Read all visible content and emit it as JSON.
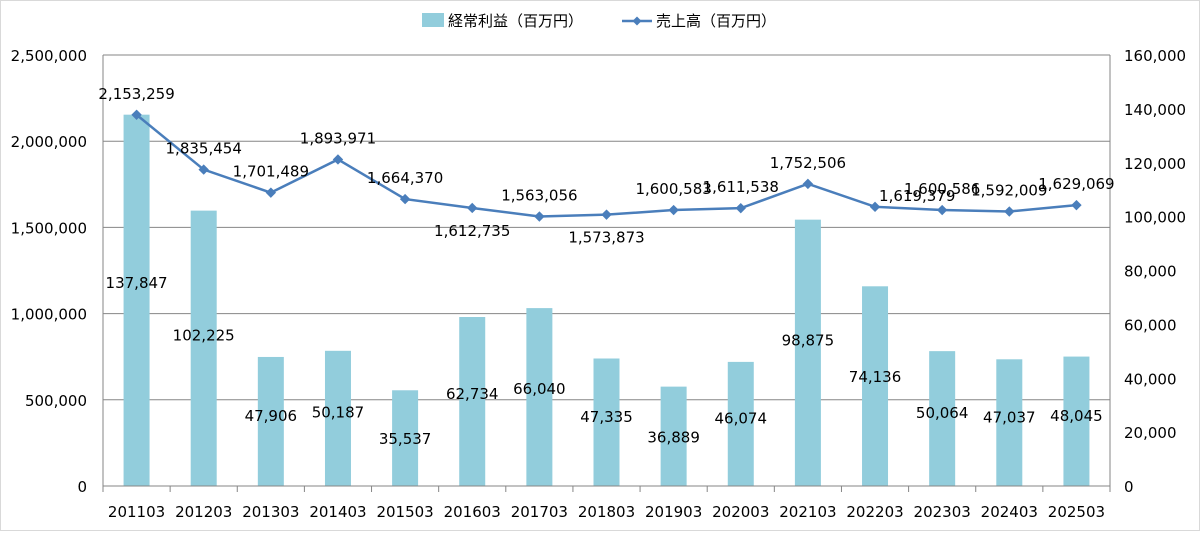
{
  "chart_data": {
    "type": "bar+line",
    "categories": [
      "201103",
      "201203",
      "201303",
      "201403",
      "201503",
      "201603",
      "201703",
      "201803",
      "201903",
      "202003",
      "202103",
      "202203",
      "202303",
      "202403",
      "202503"
    ],
    "series": [
      {
        "name": "経常利益（百万円）",
        "type": "bar",
        "axis": "right",
        "color": "#92cddc",
        "values": [
          137847,
          102225,
          47906,
          50187,
          35537,
          62734,
          66040,
          47335,
          36889,
          46074,
          98875,
          74136,
          50064,
          47037,
          48045
        ],
        "labels": [
          "137,847",
          "102,225",
          "47,906",
          "50,187",
          "35,537",
          "62,734",
          "66,040",
          "47,335",
          "36,889",
          "46,074",
          "98,875",
          "74,136",
          "50,064",
          "47,037",
          "48,045"
        ]
      },
      {
        "name": "売上高（百万円）",
        "type": "line",
        "axis": "left",
        "color": "#4a7ebb",
        "marker": "diamond",
        "values": [
          2153259,
          1835454,
          1701489,
          1893971,
          1664370,
          1612735,
          1563056,
          1573873,
          1600583,
          1611538,
          1752506,
          1619379,
          1600586,
          1592009,
          1629069
        ],
        "labels": [
          "2,153,259",
          "1,835,454",
          "1,701,489",
          "1,893,971",
          "1,664,370",
          "1,612,735",
          "1,563,056",
          "1,573,873",
          "1,600,583",
          "1,611,538",
          "1,752,506",
          "1,619,379",
          "1,600,586",
          "1,592,009",
          "1,629,069"
        ],
        "label_positions": [
          "above",
          "above",
          "above",
          "above",
          "above",
          "below",
          "above",
          "below",
          "above",
          "above",
          "above",
          "right",
          "above",
          "above",
          "above"
        ]
      }
    ],
    "y_left": {
      "min": 0,
      "max": 2500000,
      "ticks": [
        0,
        500000,
        1000000,
        1500000,
        2000000,
        2500000
      ],
      "tick_labels": [
        "0",
        "500,000",
        "1,000,000",
        "1,500,000",
        "2,000,000",
        "2,500,000"
      ]
    },
    "y_right": {
      "min": 0,
      "max": 160000,
      "ticks": [
        0,
        20000,
        40000,
        60000,
        80000,
        100000,
        120000,
        140000,
        160000
      ],
      "tick_labels": [
        "0",
        "20,000",
        "40,000",
        "60,000",
        "80,000",
        "100,000",
        "120,000",
        "140,000",
        "160,000"
      ]
    },
    "grid": true,
    "legend_position": "top-center",
    "title": "",
    "xlabel": "",
    "ylabel": ""
  }
}
